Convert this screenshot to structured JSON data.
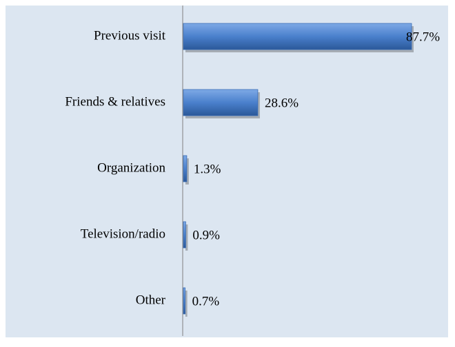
{
  "chart_data": {
    "type": "bar",
    "orientation": "horizontal",
    "categories": [
      "Previous visit",
      "Friends & relatives",
      "Organization",
      "Television/radio",
      "Other"
    ],
    "values": [
      87.7,
      28.6,
      1.3,
      0.9,
      0.7
    ],
    "value_labels": [
      "87.7%",
      "28.6%",
      "1.3%",
      "0.9%",
      "0.7%"
    ],
    "color": "#3a6db5"
  }
}
